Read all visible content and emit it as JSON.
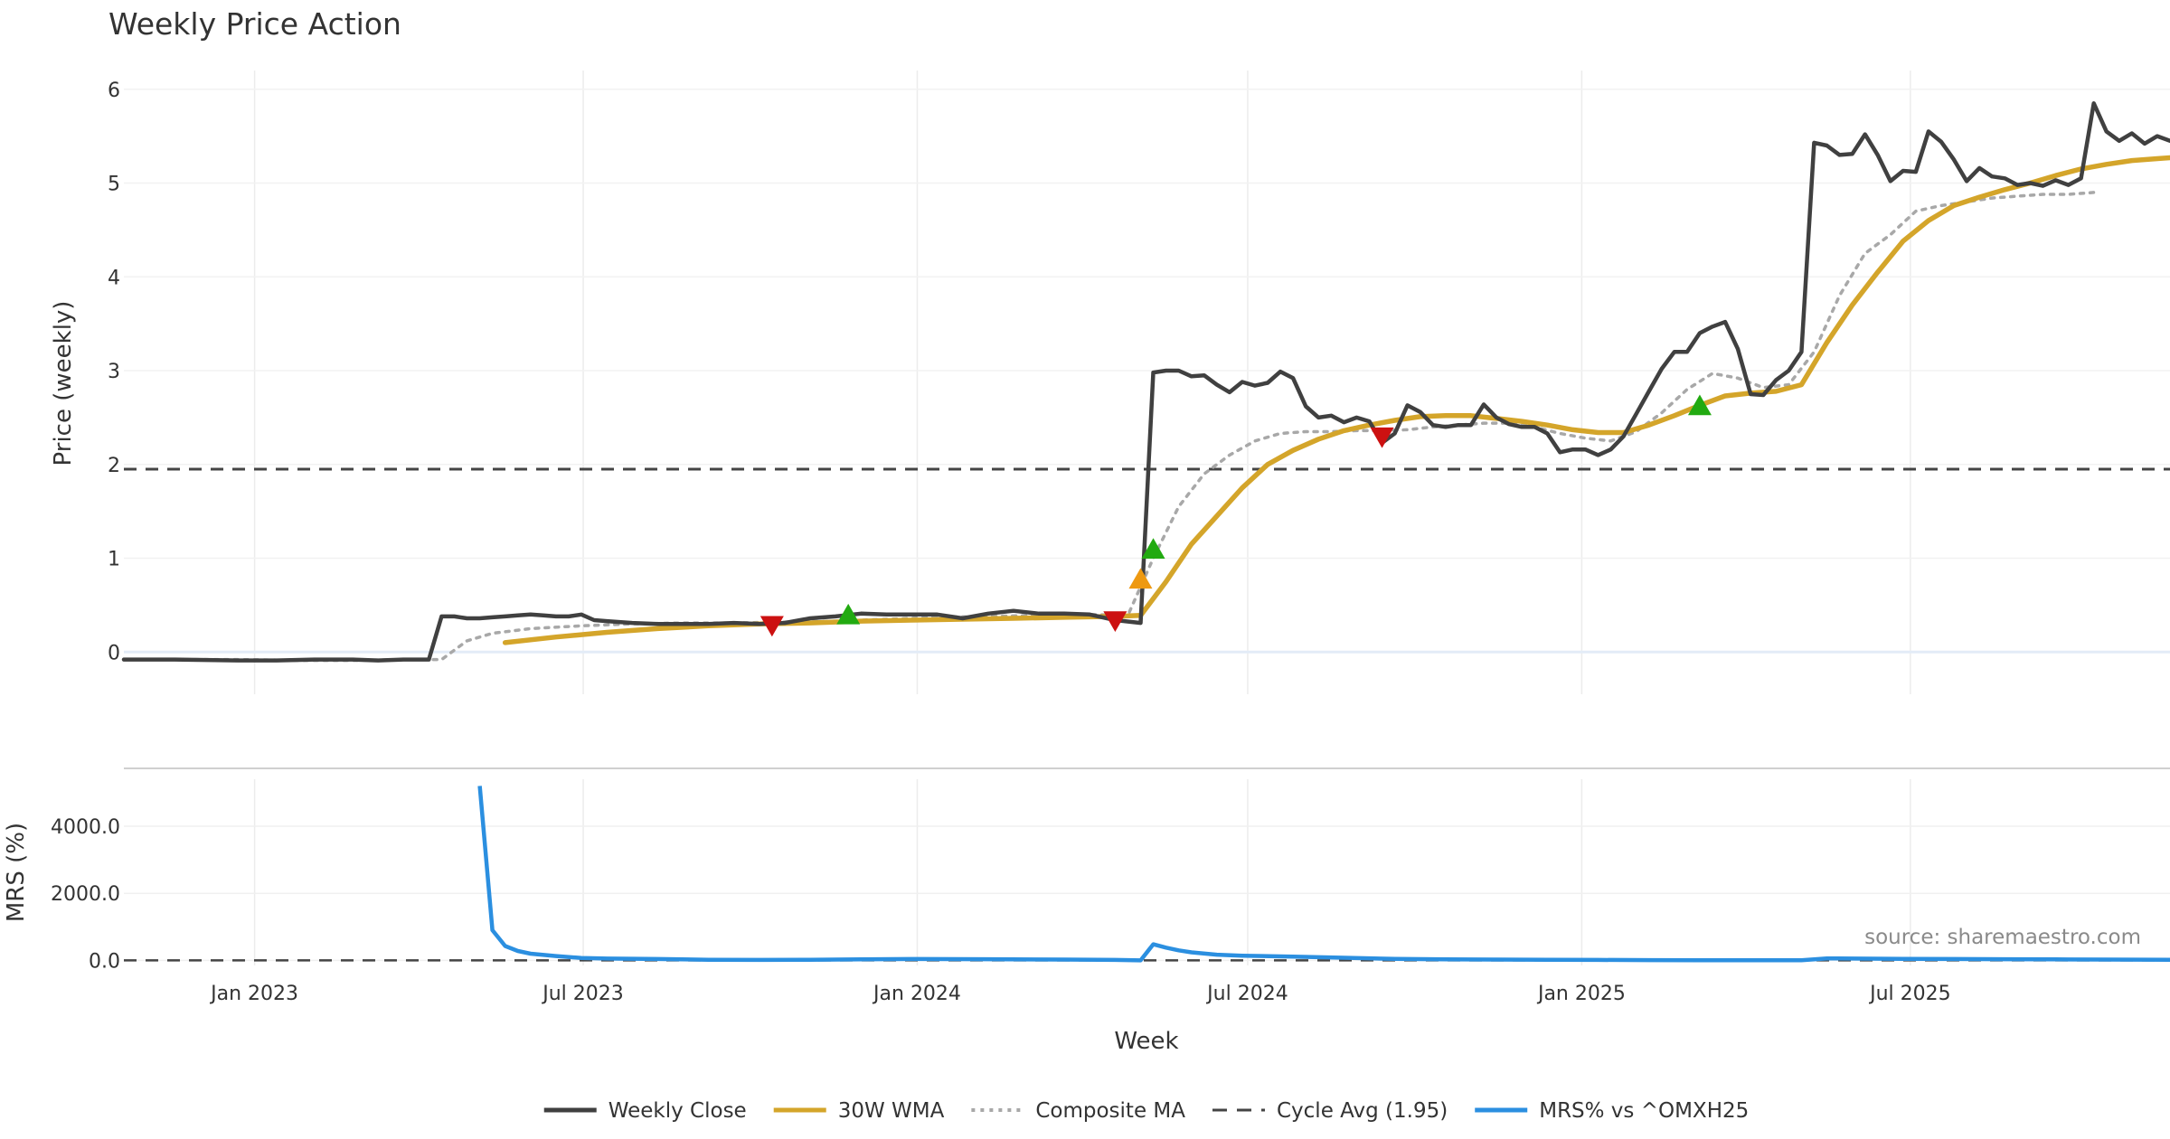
{
  "chart_data": [
    {
      "type": "line",
      "title": "Weekly Price Action",
      "ylabel": "Price (weekly)",
      "ylim": [
        -0.45,
        6.2
      ],
      "yticks": [
        "0",
        "1",
        "2",
        "3",
        "4",
        "5",
        "6"
      ],
      "ytick_values": [
        0,
        1,
        2,
        3,
        4,
        5,
        6
      ],
      "xlim": [
        "2022-10-21",
        "2025-11-21"
      ],
      "x_gridlines": [
        "2023-01-01",
        "2023-07-01",
        "2024-01-01",
        "2024-07-01",
        "2025-01-01",
        "2025-07-01"
      ],
      "grid": true,
      "cycle_avg": 1.95,
      "series": [
        {
          "name": "Weekly Close",
          "color": "#404040",
          "x": [
            "2022-10-21",
            "2022-11-18",
            "2022-12-23",
            "2023-01-13",
            "2023-02-03",
            "2023-02-24",
            "2023-03-10",
            "2023-03-24",
            "2023-04-07",
            "2023-04-14",
            "2023-04-21",
            "2023-04-28",
            "2023-05-05",
            "2023-05-12",
            "2023-05-19",
            "2023-05-26",
            "2023-06-02",
            "2023-06-09",
            "2023-06-16",
            "2023-06-23",
            "2023-06-30",
            "2023-07-07",
            "2023-07-14",
            "2023-07-28",
            "2023-08-11",
            "2023-08-25",
            "2023-09-08",
            "2023-09-22",
            "2023-10-06",
            "2023-10-20",
            "2023-11-03",
            "2023-11-17",
            "2023-12-01",
            "2023-12-15",
            "2023-12-29",
            "2024-01-12",
            "2024-01-26",
            "2024-02-09",
            "2024-02-23",
            "2024-03-08",
            "2024-03-22",
            "2024-04-05",
            "2024-04-19",
            "2024-05-03",
            "2024-05-10",
            "2024-05-17",
            "2024-05-24",
            "2024-05-31",
            "2024-06-07",
            "2024-06-14",
            "2024-06-21",
            "2024-06-28",
            "2024-07-05",
            "2024-07-12",
            "2024-07-19",
            "2024-07-26",
            "2024-08-02",
            "2024-08-09",
            "2024-08-16",
            "2024-08-23",
            "2024-08-30",
            "2024-09-06",
            "2024-09-13",
            "2024-09-20",
            "2024-09-27",
            "2024-10-04",
            "2024-10-11",
            "2024-10-18",
            "2024-10-25",
            "2024-11-01",
            "2024-11-08",
            "2024-11-15",
            "2024-11-22",
            "2024-11-29",
            "2024-12-06",
            "2024-12-13",
            "2024-12-20",
            "2024-12-27",
            "2025-01-03",
            "2025-01-10",
            "2025-01-17",
            "2025-01-24",
            "2025-01-31",
            "2025-02-07",
            "2025-02-14",
            "2025-02-21",
            "2025-02-28",
            "2025-03-07",
            "2025-03-14",
            "2025-03-21",
            "2025-03-28",
            "2025-04-04",
            "2025-04-11",
            "2025-04-18",
            "2025-04-25",
            "2025-05-02",
            "2025-05-09",
            "2025-05-16",
            "2025-05-23",
            "2025-05-30",
            "2025-06-06",
            "2025-06-13",
            "2025-06-20",
            "2025-06-27",
            "2025-07-04",
            "2025-07-11",
            "2025-07-18",
            "2025-07-25",
            "2025-08-01",
            "2025-08-08",
            "2025-08-15",
            "2025-08-22",
            "2025-08-29",
            "2025-09-05",
            "2025-09-12",
            "2025-09-19",
            "2025-09-26",
            "2025-10-03",
            "2025-10-10",
            "2025-10-17",
            "2025-10-24",
            "2025-10-31",
            "2025-11-07",
            "2025-11-14",
            "2025-11-21"
          ],
          "values": [
            -0.08,
            -0.08,
            -0.09,
            -0.09,
            -0.08,
            -0.08,
            -0.09,
            -0.08,
            -0.08,
            0.38,
            0.38,
            0.36,
            0.36,
            0.37,
            0.38,
            0.39,
            0.4,
            0.39,
            0.38,
            0.38,
            0.4,
            0.34,
            0.33,
            0.31,
            0.3,
            0.3,
            0.3,
            0.31,
            0.3,
            0.31,
            0.36,
            0.38,
            0.41,
            0.4,
            0.4,
            0.4,
            0.36,
            0.41,
            0.44,
            0.41,
            0.41,
            0.4,
            0.34,
            0.31,
            2.98,
            3.0,
            3.0,
            2.94,
            2.95,
            2.85,
            2.77,
            2.88,
            2.84,
            2.87,
            2.99,
            2.92,
            2.62,
            2.5,
            2.52,
            2.45,
            2.5,
            2.46,
            2.23,
            2.33,
            2.63,
            2.56,
            2.42,
            2.4,
            2.42,
            2.42,
            2.64,
            2.5,
            2.43,
            2.4,
            2.4,
            2.33,
            2.13,
            2.16,
            2.16,
            2.1,
            2.16,
            2.3,
            2.54,
            2.78,
            3.02,
            3.2,
            3.2,
            3.4,
            3.47,
            3.52,
            3.23,
            2.75,
            2.74,
            2.9,
            3.0,
            3.2,
            5.43,
            5.4,
            5.3,
            5.31,
            5.52,
            5.3,
            5.02,
            5.13,
            5.12,
            5.55,
            5.44,
            5.25,
            5.02,
            5.16,
            5.07,
            5.05,
            4.98,
            5.0,
            4.97,
            5.03,
            4.98,
            5.05,
            5.85,
            5.55,
            5.45,
            5.53,
            5.42,
            5.5,
            5.45
          ]
        },
        {
          "name": "30W WMA",
          "color": "#d4a52a",
          "x": [
            "2023-05-19",
            "2023-06-16",
            "2023-07-14",
            "2023-08-11",
            "2023-09-08",
            "2023-10-06",
            "2023-11-03",
            "2023-12-01",
            "2023-12-29",
            "2024-01-26",
            "2024-02-23",
            "2024-03-22",
            "2024-04-19",
            "2024-05-03",
            "2024-05-17",
            "2024-05-31",
            "2024-06-14",
            "2024-06-28",
            "2024-07-12",
            "2024-07-26",
            "2024-08-09",
            "2024-08-23",
            "2024-09-06",
            "2024-09-20",
            "2024-10-04",
            "2024-10-18",
            "2024-11-01",
            "2024-11-15",
            "2024-11-29",
            "2024-12-13",
            "2024-12-27",
            "2025-01-10",
            "2025-01-24",
            "2025-02-07",
            "2025-02-21",
            "2025-03-07",
            "2025-03-21",
            "2025-04-04",
            "2025-04-18",
            "2025-05-02",
            "2025-05-16",
            "2025-05-30",
            "2025-06-13",
            "2025-06-27",
            "2025-07-11",
            "2025-07-25",
            "2025-08-08",
            "2025-08-22",
            "2025-09-05",
            "2025-09-19",
            "2025-10-03",
            "2025-10-17",
            "2025-10-31",
            "2025-11-14",
            "2025-11-21"
          ],
          "values": [
            0.1,
            0.16,
            0.21,
            0.25,
            0.28,
            0.3,
            0.31,
            0.33,
            0.34,
            0.35,
            0.36,
            0.37,
            0.38,
            0.39,
            0.75,
            1.15,
            1.45,
            1.75,
            2.0,
            2.15,
            2.27,
            2.36,
            2.42,
            2.47,
            2.51,
            2.52,
            2.52,
            2.49,
            2.46,
            2.42,
            2.37,
            2.34,
            2.34,
            2.42,
            2.52,
            2.63,
            2.73,
            2.76,
            2.78,
            2.85,
            3.3,
            3.7,
            4.05,
            4.38,
            4.6,
            4.76,
            4.85,
            4.93,
            5.0,
            5.08,
            5.15,
            5.2,
            5.24,
            5.26,
            5.27
          ]
        },
        {
          "name": "Composite MA",
          "color": "#a8a8a8",
          "x": [
            "2022-11-18",
            "2022-12-23",
            "2023-01-27",
            "2023-02-24",
            "2023-03-24",
            "2023-04-14",
            "2023-04-28",
            "2023-05-12",
            "2023-06-02",
            "2023-06-30",
            "2023-07-28",
            "2023-08-25",
            "2023-09-22",
            "2023-10-20",
            "2023-11-17",
            "2023-12-15",
            "2024-01-12",
            "2024-02-09",
            "2024-03-08",
            "2024-04-05",
            "2024-04-26",
            "2024-05-10",
            "2024-05-24",
            "2024-06-07",
            "2024-06-21",
            "2024-07-05",
            "2024-07-19",
            "2024-08-02",
            "2024-08-16",
            "2024-08-30",
            "2024-09-13",
            "2024-09-27",
            "2024-10-11",
            "2024-10-25",
            "2024-11-08",
            "2024-11-22",
            "2024-12-06",
            "2024-12-20",
            "2025-01-03",
            "2025-01-17",
            "2025-01-31",
            "2025-02-14",
            "2025-02-28",
            "2025-03-14",
            "2025-03-28",
            "2025-04-11",
            "2025-04-25",
            "2025-05-09",
            "2025-05-23",
            "2025-06-06",
            "2025-06-20",
            "2025-07-04",
            "2025-07-18",
            "2025-08-01",
            "2025-08-15",
            "2025-08-29",
            "2025-09-12",
            "2025-09-26",
            "2025-10-10"
          ],
          "values": [
            -0.08,
            -0.08,
            -0.09,
            -0.09,
            -0.08,
            -0.08,
            0.12,
            0.2,
            0.25,
            0.28,
            0.3,
            0.31,
            0.31,
            0.32,
            0.33,
            0.35,
            0.37,
            0.38,
            0.39,
            0.4,
            0.39,
            1.0,
            1.55,
            1.9,
            2.1,
            2.25,
            2.33,
            2.35,
            2.35,
            2.36,
            2.36,
            2.37,
            2.4,
            2.42,
            2.44,
            2.44,
            2.4,
            2.33,
            2.28,
            2.25,
            2.35,
            2.55,
            2.8,
            2.97,
            2.92,
            2.82,
            2.85,
            3.2,
            3.8,
            4.25,
            4.45,
            4.7,
            4.76,
            4.8,
            4.84,
            4.86,
            4.88,
            4.88,
            4.9
          ]
        }
      ],
      "signals": [
        {
          "x": "2023-10-13",
          "y": 0.29,
          "direction": "down",
          "color": "#cc1111"
        },
        {
          "x": "2023-11-24",
          "y": 0.39,
          "direction": "up",
          "color": "#22aa11"
        },
        {
          "x": "2024-04-19",
          "y": 0.34,
          "direction": "down",
          "color": "#cc1111"
        },
        {
          "x": "2024-05-03",
          "y": 0.77,
          "direction": "up",
          "color": "#ee9911"
        },
        {
          "x": "2024-05-10",
          "y": 1.09,
          "direction": "up",
          "color": "#22aa11"
        },
        {
          "x": "2024-09-13",
          "y": 2.3,
          "direction": "down",
          "color": "#cc1111"
        },
        {
          "x": "2025-03-07",
          "y": 2.62,
          "direction": "up",
          "color": "#22aa11"
        }
      ]
    },
    {
      "type": "line",
      "ylabel": "MRS (%)",
      "ylim": [
        -150,
        5400
      ],
      "yticks": [
        "0.0",
        "2000.0",
        "4000.0"
      ],
      "ytick_values": [
        0,
        2000,
        4000
      ],
      "xlabel": "Week",
      "xticks": [
        "Jan 2023",
        "Jul 2023",
        "Jan 2024",
        "Jul 2024",
        "Jan 2025",
        "Jul 2025"
      ],
      "xtick_values": [
        "2023-01-01",
        "2023-07-01",
        "2024-01-01",
        "2024-07-01",
        "2025-01-01",
        "2025-07-01"
      ],
      "reference_line": 0,
      "series": [
        {
          "name": "MRS% vs ^OMXH25",
          "color": "#2b8fe0",
          "x": [
            "2023-05-05",
            "2023-05-12",
            "2023-05-19",
            "2023-05-26",
            "2023-06-02",
            "2023-06-16",
            "2023-06-30",
            "2023-07-14",
            "2023-08-11",
            "2023-09-08",
            "2023-10-06",
            "2023-11-03",
            "2023-12-01",
            "2023-12-29",
            "2024-02-09",
            "2024-03-22",
            "2024-04-19",
            "2024-05-03",
            "2024-05-10",
            "2024-05-17",
            "2024-05-24",
            "2024-05-31",
            "2024-06-14",
            "2024-06-28",
            "2024-07-26",
            "2024-08-23",
            "2024-09-20",
            "2024-10-18",
            "2024-11-15",
            "2024-12-13",
            "2025-01-10",
            "2025-02-07",
            "2025-03-07",
            "2025-04-04",
            "2025-05-02",
            "2025-05-16",
            "2025-05-30",
            "2025-06-27",
            "2025-07-25",
            "2025-08-22",
            "2025-09-19",
            "2025-10-17",
            "2025-11-21"
          ],
          "values": [
            5200,
            900,
            430,
            280,
            200,
            130,
            70,
            55,
            40,
            20,
            15,
            20,
            30,
            40,
            35,
            25,
            15,
            0,
            480,
            380,
            300,
            240,
            170,
            140,
            110,
            80,
            45,
            30,
            25,
            20,
            15,
            10,
            5,
            5,
            5,
            60,
            55,
            45,
            40,
            35,
            30,
            25,
            20
          ]
        }
      ]
    }
  ],
  "legend": [
    {
      "label": "Weekly Close",
      "style": "solid",
      "color": "#404040"
    },
    {
      "label": "30W WMA",
      "style": "solid",
      "color": "#d4a52a"
    },
    {
      "label": "Composite MA",
      "style": "dotted",
      "color": "#a8a8a8"
    },
    {
      "label": "Cycle Avg (1.95)",
      "style": "dashed",
      "color": "#444444"
    },
    {
      "label": "MRS% vs ^OMXH25",
      "style": "solid",
      "color": "#2b8fe0"
    }
  ],
  "source": "source: sharemaestro.com"
}
